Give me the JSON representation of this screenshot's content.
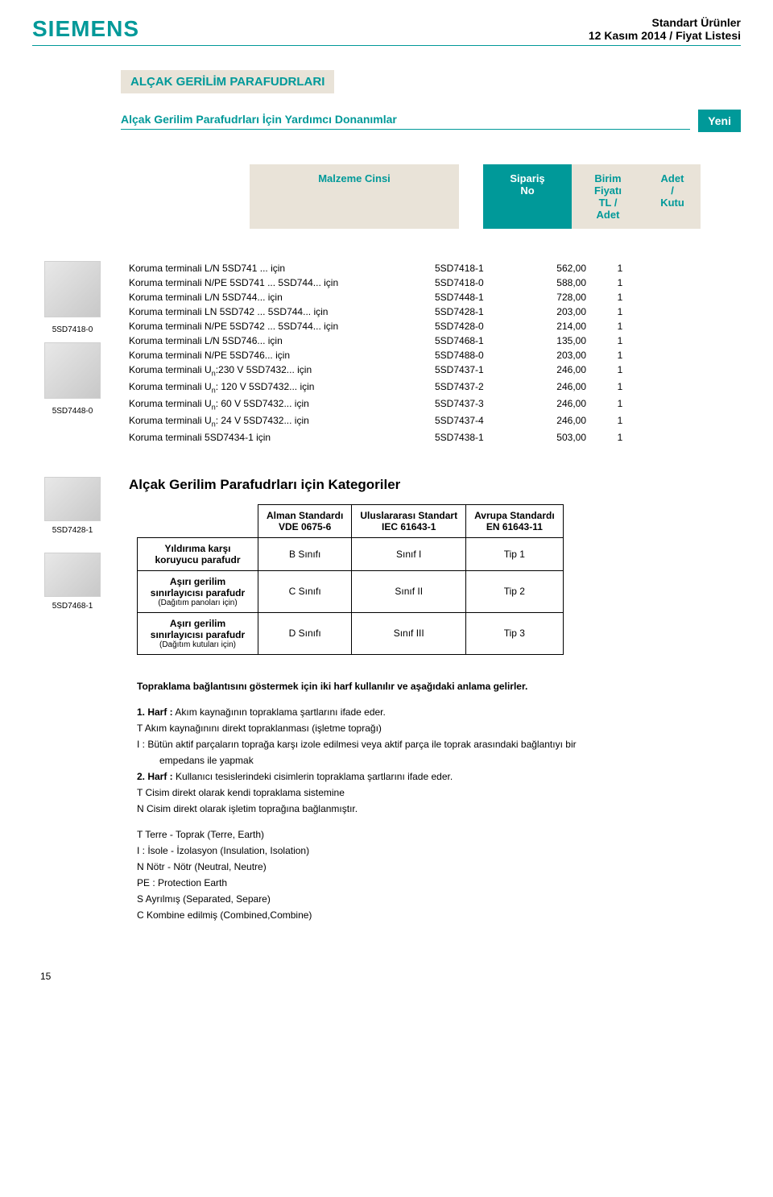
{
  "header": {
    "brand": "SIEMENS",
    "line1": "Standart Ürünler",
    "line2": "12 Kasım 2014 / Fiyat Listesi"
  },
  "section_title": "ALÇAK GERİLİM PARAFUDRLARI",
  "subtitle": "Alçak Gerilim Parafudrları İçin Yardımcı Donanımlar",
  "badge": "Yeni",
  "col_headers": {
    "c1": "Malzeme Cinsi",
    "c2": "Sipariş\nNo",
    "c3": "Birim\nFiyatı\nTL /\nAdet",
    "c4": "Adet\n/\nKutu"
  },
  "left_images": {
    "cap1": "5SD7418-0",
    "cap2": "5SD7448-0",
    "cap3": "5SD7428-1",
    "cap4": "5SD7468-1"
  },
  "rows": [
    {
      "desc": "Koruma terminali L/N  5SD741 ... için",
      "code": "5SD7418-1",
      "price": "562,00",
      "qty": "1"
    },
    {
      "desc": "Koruma terminali N/PE  5SD741 ...  5SD744... için",
      "code": "5SD7418-0",
      "price": "588,00",
      "qty": "1"
    },
    {
      "desc": "Koruma terminali L/N 5SD744... için",
      "code": "5SD7448-1",
      "price": "728,00",
      "qty": "1"
    },
    {
      "desc": "Koruma terminali LN  5SD742 ...  5SD744... için",
      "code": "5SD7428-1",
      "price": "203,00",
      "qty": "1"
    },
    {
      "desc": "Koruma terminali N/PE  5SD742 ...  5SD744... için",
      "code": "5SD7428-0",
      "price": "214,00",
      "qty": "1"
    },
    {
      "desc": "Koruma terminali L/N 5SD746... için",
      "code": "5SD7468-1",
      "price": "135,00",
      "qty": "1"
    },
    {
      "desc": "Koruma terminali N/PE 5SD746... için",
      "code": "5SD7488-0",
      "price": "203,00",
      "qty": "1"
    },
    {
      "desc": "Koruma terminali U<sub>n</sub>:230 V 5SD7432... için",
      "code": "5SD7437-1",
      "price": "246,00",
      "qty": "1"
    },
    {
      "desc": "Koruma terminali U<sub>n</sub>: 120 V 5SD7432... için",
      "code": "5SD7437-2",
      "price": "246,00",
      "qty": "1"
    },
    {
      "desc": "Koruma terminali U<sub>n</sub>: 60 V 5SD7432... için",
      "code": "5SD7437-3",
      "price": "246,00",
      "qty": "1"
    },
    {
      "desc": "Koruma terminali U<sub>n</sub>: 24 V 5SD7432... için",
      "code": "5SD7437-4",
      "price": "246,00",
      "qty": "1"
    },
    {
      "desc": "Koruma terminali 5SD7434-1 için",
      "code": "5SD7438-1",
      "price": "503,00",
      "qty": "1"
    }
  ],
  "cat_title": "Alçak Gerilim Parafudrları için Kategoriler",
  "cat_table": {
    "headers": [
      "",
      "Alman Standardı\nVDE 0675-6",
      "Uluslararası Standart\nIEC 61643-1",
      "Avrupa Standardı\nEN 61643-11"
    ],
    "rows": [
      {
        "label": "Yıldırıma karşı koruyucu parafudr",
        "sub": "",
        "c1": "B Sınıfı",
        "c2": "Sınıf I",
        "c3": "Tip 1"
      },
      {
        "label": "Aşırı gerilim sınırlayıcısı parafudr",
        "sub": "(Dağıtım panoları için)",
        "c1": "C Sınıfı",
        "c2": "Sınıf II",
        "c3": "Tip 2"
      },
      {
        "label": "Aşırı gerilim sınırlayıcısı parafudr",
        "sub": "(Dağıtım kutuları için)",
        "c1": "D Sınıfı",
        "c2": "Sınıf III",
        "c3": "Tip 3"
      }
    ]
  },
  "notes": {
    "intro": "Topraklama bağlantısını göstermek için iki harf kullanılır ve aşağıdaki anlama gelirler.",
    "b1_title": "1.  Harf :",
    "b1_text": "Akım kaynağının topraklama şartlarını ifade eder.",
    "b1_l1": "T  Akım kaynağınını direkt topraklanması (işletme toprağı)",
    "b1_l2": "I : Bütün aktif parçaların toprağa karşı izole edilmesi veya aktif parça ile toprak arasındaki bağlantıyı bir",
    "b1_l2b": "empedans ile yapmak",
    "b2_title": "2.  Harf :",
    "b2_text": "Kullanıcı tesislerindeki cisimlerin topraklama şartlarını ifade eder.",
    "b2_l1": "T  Cisim direkt olarak kendi topraklama sistemine",
    "b2_l2": "N  Cisim direkt olarak işletim toprağına bağlanmıştır.",
    "defs": [
      "T   Terre - Toprak (Terre, Earth)",
      "I :  İsole - İzolasyon (Insulation, Isolation)",
      "N  Nötr - Nötr (Neutral, Neutre)",
      "PE :  Protection Earth",
      "S   Ayrılmış (Separated, Separe)",
      "C   Kombine edilmiş (Combined,Combine)"
    ]
  },
  "page_num": "15"
}
